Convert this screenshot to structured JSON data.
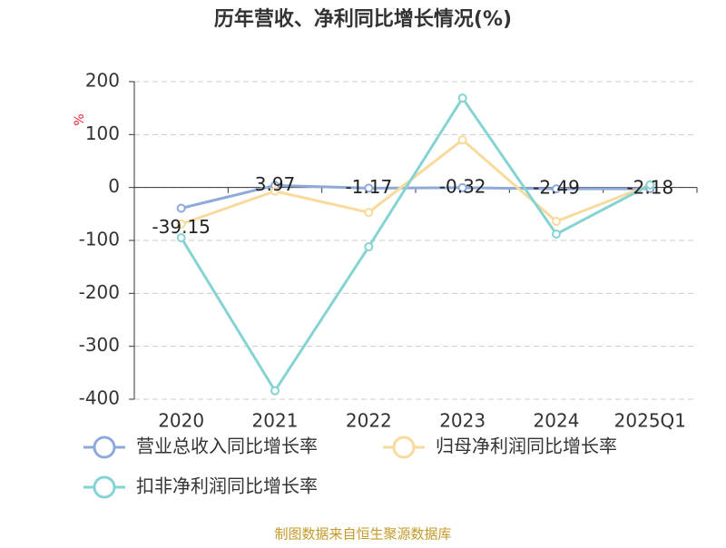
{
  "chart_data": {
    "type": "line",
    "title": "历年营收、净利同比增长情况(%)",
    "y_label": "%",
    "categories": [
      "2020",
      "2021",
      "2022",
      "2023",
      "2024",
      "2025Q1"
    ],
    "series": [
      {
        "name": "营业总收入同比增长率",
        "color": "#8eaad8",
        "values": [
          -39.15,
          3.97,
          -1.17,
          -0.32,
          -2.49,
          -2.18
        ],
        "show_labels": true
      },
      {
        "name": "归母净利润同比增长率",
        "color": "#f8da9c",
        "values": [
          -69,
          -7,
          -47,
          90,
          -64,
          5
        ],
        "show_labels": false
      },
      {
        "name": "扣非净利润同比增长率",
        "color": "#86d3d3",
        "values": [
          -95,
          -384,
          -112,
          169,
          -88,
          5
        ],
        "show_labels": false
      }
    ],
    "ylim": [
      -400,
      200
    ],
    "yticks": [
      -400,
      -300,
      -200,
      -100,
      0,
      100,
      200
    ],
    "grid": true,
    "source": "制图数据来自恒生聚源数据库"
  }
}
